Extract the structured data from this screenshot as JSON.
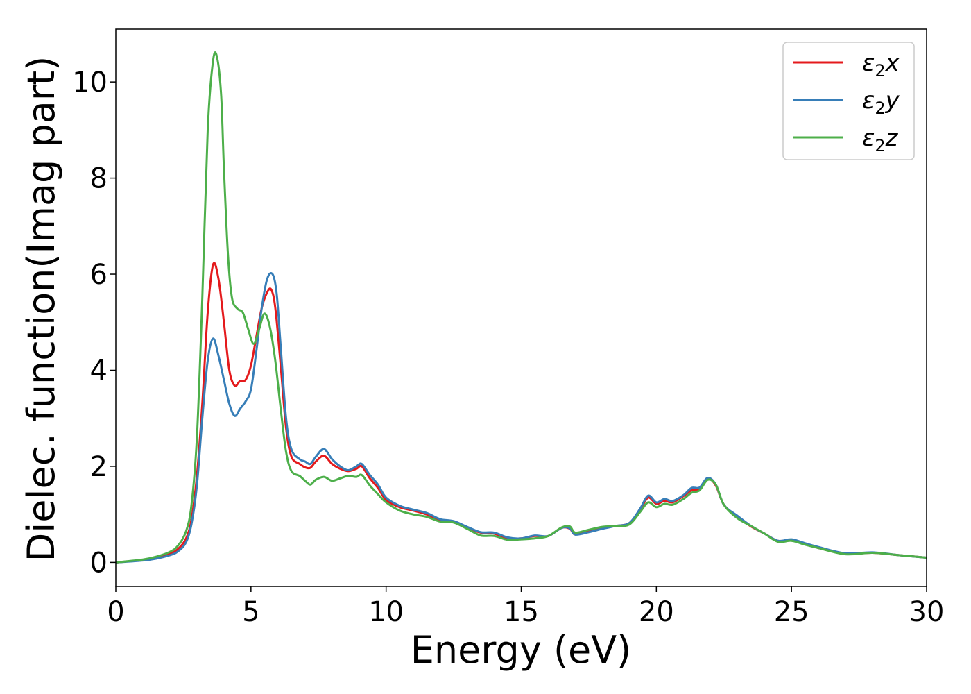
{
  "chart_data": {
    "type": "line",
    "title": "",
    "xlabel": "Energy (eV)",
    "ylabel": "Dielec. function(Imag part)",
    "xlim": [
      0,
      30
    ],
    "ylim": [
      -0.5,
      11.1
    ],
    "x_ticks": [
      0,
      5,
      10,
      15,
      20,
      25,
      30
    ],
    "y_ticks": [
      0,
      2,
      4,
      6,
      8,
      10
    ],
    "grid": false,
    "legend_position": "top-right",
    "series": [
      {
        "name": "ε₂x",
        "legend_main": "ε",
        "legend_sub": "2",
        "legend_suffix": "x",
        "color": "#e41a1c",
        "x": [
          0,
          1,
          1.5,
          2,
          2.3,
          2.6,
          2.8,
          3.0,
          3.2,
          3.4,
          3.6,
          3.8,
          4.0,
          4.2,
          4.4,
          4.6,
          4.8,
          5.0,
          5.2,
          5.4,
          5.6,
          5.75,
          5.9,
          6.1,
          6.3,
          6.5,
          6.8,
          7.0,
          7.2,
          7.4,
          7.7,
          8.0,
          8.3,
          8.6,
          8.9,
          9.1,
          9.4,
          9.7,
          10.0,
          10.5,
          11.0,
          11.5,
          12.0,
          12.5,
          13.0,
          13.5,
          14.0,
          14.5,
          15.0,
          15.5,
          16.0,
          16.5,
          16.8,
          17.0,
          17.5,
          18.0,
          18.5,
          19.0,
          19.4,
          19.7,
          20.0,
          20.3,
          20.6,
          21.0,
          21.3,
          21.6,
          21.9,
          22.2,
          22.5,
          23.0,
          23.5,
          24.0,
          24.5,
          25.0,
          25.5,
          26.0,
          27.0,
          28.0,
          29.0,
          30.0
        ],
        "values": [
          0.0,
          0.05,
          0.1,
          0.18,
          0.28,
          0.5,
          0.9,
          1.8,
          3.3,
          5.2,
          6.2,
          5.9,
          5.0,
          4.0,
          3.68,
          3.78,
          3.8,
          4.1,
          4.7,
          5.3,
          5.62,
          5.68,
          5.3,
          4.1,
          2.8,
          2.2,
          2.05,
          1.98,
          1.97,
          2.1,
          2.22,
          2.05,
          1.95,
          1.9,
          1.95,
          2.0,
          1.75,
          1.55,
          1.3,
          1.15,
          1.08,
          1.0,
          0.88,
          0.85,
          0.72,
          0.62,
          0.6,
          0.5,
          0.5,
          0.55,
          0.55,
          0.72,
          0.7,
          0.58,
          0.65,
          0.72,
          0.76,
          0.82,
          1.1,
          1.35,
          1.22,
          1.28,
          1.25,
          1.38,
          1.5,
          1.52,
          1.75,
          1.6,
          1.2,
          0.95,
          0.75,
          0.6,
          0.45,
          0.47,
          0.38,
          0.3,
          0.18,
          0.2,
          0.15,
          0.1
        ]
      },
      {
        "name": "ε₂y",
        "legend_main": "ε",
        "legend_sub": "2",
        "legend_suffix": "y",
        "color": "#377eb8",
        "x": [
          0,
          1,
          1.5,
          2,
          2.3,
          2.6,
          2.8,
          3.0,
          3.2,
          3.4,
          3.6,
          3.8,
          4.0,
          4.2,
          4.4,
          4.6,
          4.8,
          5.0,
          5.2,
          5.4,
          5.6,
          5.8,
          5.95,
          6.1,
          6.3,
          6.5,
          6.8,
          7.0,
          7.2,
          7.4,
          7.7,
          8.0,
          8.3,
          8.6,
          8.9,
          9.1,
          9.4,
          9.7,
          10.0,
          10.5,
          11.0,
          11.5,
          12.0,
          12.5,
          13.0,
          13.5,
          14.0,
          14.5,
          15.0,
          15.5,
          16.0,
          16.5,
          16.8,
          17.0,
          17.5,
          18.0,
          18.5,
          19.0,
          19.4,
          19.7,
          20.0,
          20.3,
          20.6,
          21.0,
          21.3,
          21.6,
          21.9,
          22.2,
          22.5,
          23.0,
          23.5,
          24.0,
          24.5,
          25.0,
          25.5,
          26.0,
          27.0,
          28.0,
          29.0,
          30.0
        ],
        "values": [
          0.0,
          0.04,
          0.08,
          0.15,
          0.23,
          0.42,
          0.8,
          1.6,
          3.0,
          4.2,
          4.66,
          4.3,
          3.8,
          3.3,
          3.05,
          3.2,
          3.35,
          3.6,
          4.4,
          5.3,
          5.9,
          6.0,
          5.6,
          4.5,
          3.0,
          2.35,
          2.15,
          2.1,
          2.05,
          2.2,
          2.36,
          2.15,
          2.0,
          1.92,
          2.0,
          2.05,
          1.82,
          1.62,
          1.35,
          1.18,
          1.1,
          1.03,
          0.9,
          0.86,
          0.74,
          0.63,
          0.62,
          0.52,
          0.5,
          0.56,
          0.55,
          0.72,
          0.71,
          0.58,
          0.63,
          0.7,
          0.76,
          0.82,
          1.12,
          1.39,
          1.25,
          1.32,
          1.28,
          1.4,
          1.55,
          1.56,
          1.76,
          1.62,
          1.2,
          0.97,
          0.76,
          0.6,
          0.45,
          0.48,
          0.4,
          0.32,
          0.19,
          0.21,
          0.15,
          0.1
        ]
      },
      {
        "name": "ε₂z",
        "legend_main": "ε",
        "legend_sub": "2",
        "legend_suffix": "z",
        "color": "#4daf4a",
        "x": [
          0,
          1,
          1.5,
          2,
          2.3,
          2.6,
          2.8,
          3.0,
          3.2,
          3.4,
          3.6,
          3.75,
          3.9,
          4.0,
          4.15,
          4.3,
          4.5,
          4.7,
          4.9,
          5.1,
          5.3,
          5.5,
          5.7,
          5.9,
          6.1,
          6.3,
          6.5,
          6.8,
          7.0,
          7.2,
          7.4,
          7.7,
          8.0,
          8.3,
          8.6,
          8.9,
          9.1,
          9.4,
          9.7,
          10.0,
          10.5,
          11.0,
          11.5,
          12.0,
          12.5,
          13.0,
          13.5,
          14.0,
          14.5,
          15.0,
          15.5,
          16.0,
          16.5,
          16.8,
          17.0,
          17.5,
          18.0,
          18.5,
          19.0,
          19.4,
          19.7,
          20.0,
          20.3,
          20.6,
          21.0,
          21.3,
          21.6,
          21.9,
          22.2,
          22.5,
          23.0,
          23.5,
          24.0,
          24.5,
          25.0,
          25.5,
          26.0,
          27.0,
          28.0,
          29.0,
          30.0
        ],
        "values": [
          0.0,
          0.06,
          0.12,
          0.22,
          0.35,
          0.65,
          1.2,
          2.6,
          5.5,
          9.0,
          10.45,
          10.5,
          9.7,
          8.2,
          6.4,
          5.5,
          5.28,
          5.2,
          4.85,
          4.55,
          4.85,
          5.18,
          4.9,
          4.2,
          3.2,
          2.3,
          1.9,
          1.8,
          1.7,
          1.62,
          1.72,
          1.78,
          1.7,
          1.75,
          1.8,
          1.78,
          1.82,
          1.6,
          1.42,
          1.25,
          1.08,
          1.0,
          0.95,
          0.85,
          0.83,
          0.7,
          0.56,
          0.55,
          0.47,
          0.48,
          0.5,
          0.55,
          0.73,
          0.75,
          0.62,
          0.68,
          0.74,
          0.76,
          0.79,
          1.05,
          1.25,
          1.15,
          1.22,
          1.2,
          1.32,
          1.45,
          1.5,
          1.72,
          1.62,
          1.2,
          0.92,
          0.76,
          0.6,
          0.43,
          0.45,
          0.37,
          0.3,
          0.17,
          0.2,
          0.15,
          0.1
        ]
      }
    ]
  }
}
